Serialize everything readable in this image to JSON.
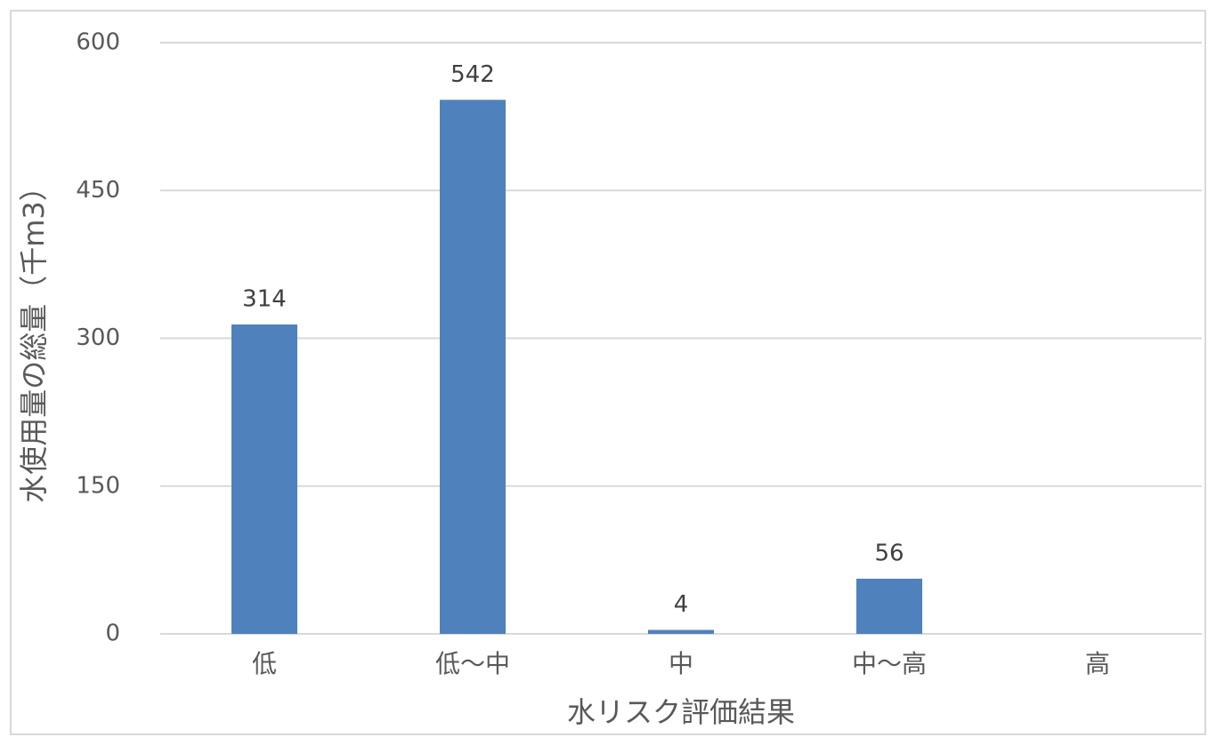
{
  "chart_data": {
    "type": "bar",
    "y_label": "水使用量の総量（千m3）",
    "x_label": "水リスク評価結果",
    "categories": [
      "低",
      "低〜中",
      "中",
      "中〜高",
      "高"
    ],
    "values": [
      314,
      542,
      4,
      56,
      null
    ],
    "color": "#4f81bd",
    "ylim": [
      0,
      600
    ],
    "yticks": [
      0,
      150,
      300,
      450,
      600
    ],
    "grid": true
  }
}
